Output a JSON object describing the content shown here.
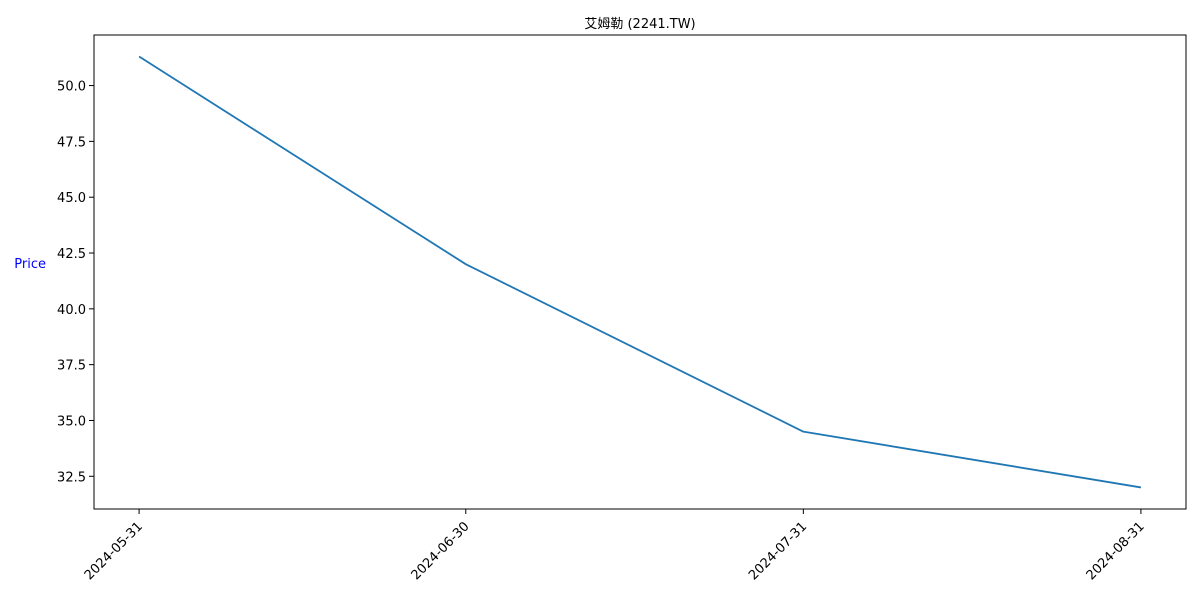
{
  "chart_data": {
    "type": "line",
    "title": "艾姆勒 (2241.TW)",
    "xlabel": "",
    "ylabel": "Price",
    "ylabel_color": "#0000ff",
    "line_color": "#1f77b4",
    "x": [
      "2024-05-31",
      "2024-06-30",
      "2024-07-31",
      "2024-08-31"
    ],
    "series": [
      {
        "values": [
          51.3,
          42.0,
          34.5,
          32.0
        ]
      }
    ],
    "x_ticks": [
      "2024-05-31",
      "2024-06-30",
      "2024-07-31",
      "2024-08-31"
    ],
    "y_ticks": [
      32.5,
      35.0,
      37.5,
      40.0,
      42.5,
      45.0,
      47.5,
      50.0
    ],
    "y_tick_labels": [
      "32.5",
      "35.0",
      "37.5",
      "40.0",
      "42.5",
      "45.0",
      "47.5",
      "50.0"
    ],
    "ylim": [
      31.035,
      52.265
    ],
    "grid": false,
    "legend": "none"
  }
}
